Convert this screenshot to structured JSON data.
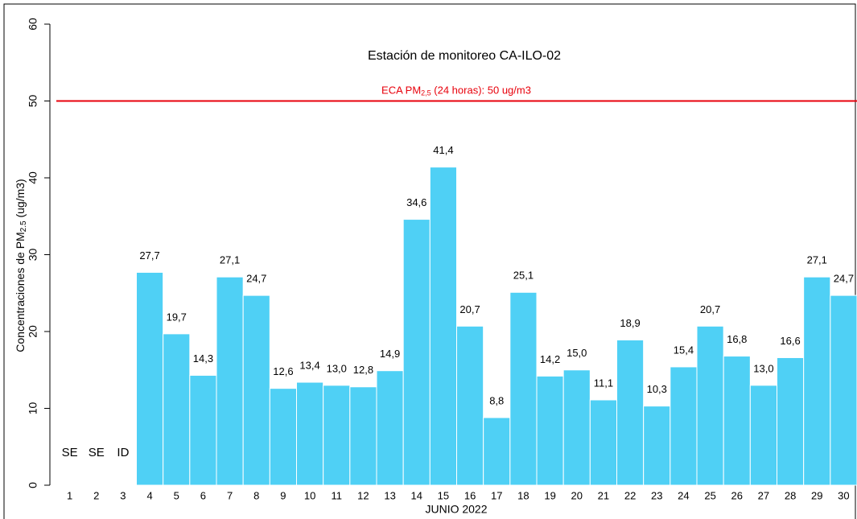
{
  "chart_data": {
    "type": "bar",
    "title": "Estación de monitoreo  CA-ILO-02",
    "x_label": "JUNIO 2022",
    "y_label": {
      "text": "Concentraciones de PM",
      "sub": "2.5",
      "rest": " (ug/m3)"
    },
    "categories": [
      "1",
      "2",
      "3",
      "4",
      "5",
      "6",
      "7",
      "8",
      "9",
      "10",
      "11",
      "12",
      "13",
      "14",
      "15",
      "16",
      "17",
      "18",
      "19",
      "20",
      "21",
      "22",
      "23",
      "24",
      "25",
      "26",
      "27",
      "28",
      "29",
      "30"
    ],
    "values": [
      null,
      null,
      null,
      27.7,
      19.7,
      14.3,
      27.1,
      24.7,
      12.6,
      13.4,
      13.0,
      12.8,
      14.9,
      34.6,
      41.4,
      20.7,
      8.8,
      25.1,
      14.2,
      15.0,
      11.1,
      18.9,
      10.3,
      15.4,
      20.7,
      16.8,
      13.0,
      16.6,
      27.1,
      24.7
    ],
    "value_labels": [
      "SE",
      "SE",
      "ID",
      "27,7",
      "19,7",
      "14,3",
      "27,1",
      "24,7",
      "12,6",
      "13,4",
      "13,0",
      "12,8",
      "14,9",
      "34,6",
      "41,4",
      "20,7",
      "8,8",
      "25,1",
      "14,2",
      "15,0",
      "11,1",
      "18,9",
      "10,3",
      "15,4",
      "20,7",
      "16,8",
      "13,0",
      "16,6",
      "27,1",
      "24,7"
    ],
    "color": "#4fd0f5",
    "ylim": [
      0,
      60
    ],
    "yticks": [
      0,
      10,
      20,
      30,
      40,
      50,
      60
    ],
    "reference_line": {
      "value": 50,
      "color": "#e8000b",
      "label": {
        "text": "ECA PM",
        "sub": "2,5",
        "rest": " (24 horas): 50 ug/m3"
      }
    }
  }
}
